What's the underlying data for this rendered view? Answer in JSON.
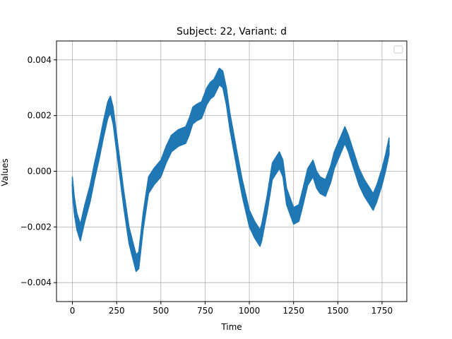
{
  "chart_data": {
    "type": "line",
    "title": "Subject: 22, Variant: d",
    "xlabel": "Time",
    "ylabel": "Values",
    "xlim": [
      -90,
      1890
    ],
    "ylim": [
      -0.00468,
      0.00468
    ],
    "xticks": [
      0,
      250,
      500,
      750,
      1000,
      1250,
      1500,
      1750
    ],
    "xtick_labels": [
      "0",
      "250",
      "500",
      "750",
      "1000",
      "1250",
      "1500",
      "1750"
    ],
    "yticks": [
      -0.004,
      -0.002,
      0.0,
      0.002,
      0.004
    ],
    "ytick_labels": [
      "−0.004",
      "−0.002",
      "0.000",
      "0.002",
      "0.004"
    ],
    "grid": true,
    "legend": "top-right, empty",
    "series": [
      {
        "color": "#1f77b4",
        "band_width": 0.0006,
        "x": [
          0,
          10,
          25,
          45,
          70,
          100,
          125,
          150,
          175,
          200,
          215,
          230,
          260,
          290,
          320,
          340,
          360,
          375,
          400,
          430,
          460,
          500,
          530,
          560,
          600,
          640,
          660,
          680,
          700,
          730,
          760,
          780,
          800,
          830,
          850,
          870,
          890,
          910,
          930,
          960,
          1000,
          1030,
          1060,
          1070,
          1100,
          1130,
          1150,
          1170,
          1190,
          1210,
          1250,
          1280,
          1300,
          1330,
          1360,
          1380,
          1400,
          1430,
          1460,
          1480,
          1520,
          1540,
          1560,
          1590,
          1620,
          1650,
          1680,
          1700,
          1720,
          1750,
          1770,
          1790
        ],
        "y": [
          -0.0005,
          -0.0012,
          -0.0018,
          -0.0022,
          -0.0015,
          -0.0008,
          0.0,
          0.0007,
          0.0015,
          0.0022,
          0.0024,
          0.002,
          0.0005,
          -0.001,
          -0.0023,
          -0.0028,
          -0.0033,
          -0.0032,
          -0.0018,
          -0.0005,
          -0.0002,
          0.0001,
          0.0006,
          0.001,
          0.0012,
          0.0013,
          0.0016,
          0.002,
          0.0021,
          0.0022,
          0.0027,
          0.0029,
          0.003,
          0.0034,
          0.0033,
          0.0027,
          0.0018,
          0.0011,
          0.0004,
          -0.0006,
          -0.0017,
          -0.0021,
          -0.0024,
          -0.0022,
          -0.0012,
          0.0,
          0.0002,
          0.0004,
          0.0001,
          -0.0009,
          -0.0016,
          -0.0015,
          -0.001,
          -0.0002,
          0.0001,
          -0.0003,
          -0.0005,
          -0.0006,
          -0.0001,
          0.0004,
          0.001,
          0.0013,
          0.001,
          0.0004,
          -0.0002,
          -0.0006,
          -0.0009,
          -0.0011,
          -0.0008,
          -0.0002,
          0.0003,
          0.0009
        ]
      }
    ]
  }
}
